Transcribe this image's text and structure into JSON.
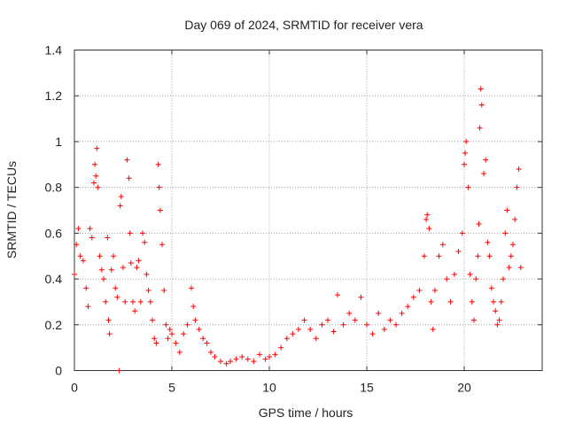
{
  "chart_data": {
    "type": "scatter",
    "title": "Day 069 of 2024, SRMTID for receiver vera",
    "xlabel": "GPS time / hours",
    "ylabel": "SRMTID / TECUs",
    "xlim": [
      0,
      24
    ],
    "ylim": [
      0,
      1.4
    ],
    "xticks": [
      0,
      5,
      10,
      15,
      20
    ],
    "xtick_labels": [
      "0",
      "5",
      "10",
      "15",
      "20"
    ],
    "yticks": [
      0,
      0.2,
      0.4,
      0.6,
      0.8,
      1.0,
      1.2,
      1.4
    ],
    "ytick_labels": [
      "0",
      "0.2",
      "0.4",
      "0.6",
      "0.8",
      "1",
      "1.2",
      "1.4"
    ],
    "grid": true,
    "marker": "+",
    "marker_color": "#ff0000",
    "series": [
      {
        "name": "SRMTID",
        "points": [
          [
            0.0,
            0.42
          ],
          [
            0.1,
            0.55
          ],
          [
            0.2,
            0.62
          ],
          [
            0.3,
            0.5
          ],
          [
            0.45,
            0.48
          ],
          [
            0.6,
            0.36
          ],
          [
            0.7,
            0.28
          ],
          [
            0.8,
            0.62
          ],
          [
            0.9,
            0.58
          ],
          [
            1.0,
            0.82
          ],
          [
            1.05,
            0.9
          ],
          [
            1.1,
            0.85
          ],
          [
            1.15,
            0.97
          ],
          [
            1.2,
            0.8
          ],
          [
            1.3,
            0.5
          ],
          [
            1.4,
            0.44
          ],
          [
            1.5,
            0.4
          ],
          [
            1.6,
            0.3
          ],
          [
            1.7,
            0.58
          ],
          [
            1.75,
            0.22
          ],
          [
            1.8,
            0.16
          ],
          [
            1.9,
            0.44
          ],
          [
            2.0,
            0.5
          ],
          [
            2.1,
            0.36
          ],
          [
            2.2,
            0.32
          ],
          [
            2.3,
            0.0
          ],
          [
            2.35,
            0.72
          ],
          [
            2.4,
            0.76
          ],
          [
            2.5,
            0.45
          ],
          [
            2.6,
            0.3
          ],
          [
            2.7,
            0.92
          ],
          [
            2.8,
            0.84
          ],
          [
            2.85,
            0.6
          ],
          [
            2.9,
            0.47
          ],
          [
            3.0,
            0.3
          ],
          [
            3.1,
            0.26
          ],
          [
            3.2,
            0.45
          ],
          [
            3.3,
            0.48
          ],
          [
            3.4,
            0.3
          ],
          [
            3.5,
            0.6
          ],
          [
            3.6,
            0.56
          ],
          [
            3.7,
            0.42
          ],
          [
            3.8,
            0.35
          ],
          [
            3.9,
            0.3
          ],
          [
            4.0,
            0.22
          ],
          [
            4.1,
            0.14
          ],
          [
            4.2,
            0.12
          ],
          [
            4.3,
            0.9
          ],
          [
            4.35,
            0.8
          ],
          [
            4.4,
            0.7
          ],
          [
            4.5,
            0.55
          ],
          [
            4.6,
            0.35
          ],
          [
            4.7,
            0.2
          ],
          [
            4.8,
            0.14
          ],
          [
            4.9,
            0.18
          ],
          [
            5.0,
            0.16
          ],
          [
            5.2,
            0.12
          ],
          [
            5.4,
            0.08
          ],
          [
            5.6,
            0.16
          ],
          [
            5.8,
            0.2
          ],
          [
            6.0,
            0.36
          ],
          [
            6.1,
            0.28
          ],
          [
            6.2,
            0.22
          ],
          [
            6.4,
            0.18
          ],
          [
            6.6,
            0.14
          ],
          [
            6.8,
            0.12
          ],
          [
            7.0,
            0.08
          ],
          [
            7.2,
            0.06
          ],
          [
            7.5,
            0.04
          ],
          [
            7.8,
            0.03
          ],
          [
            8.0,
            0.04
          ],
          [
            8.3,
            0.05
          ],
          [
            8.6,
            0.06
          ],
          [
            8.9,
            0.05
          ],
          [
            9.2,
            0.04
          ],
          [
            9.5,
            0.07
          ],
          [
            9.8,
            0.05
          ],
          [
            10.0,
            0.06
          ],
          [
            10.3,
            0.07
          ],
          [
            10.6,
            0.1
          ],
          [
            10.9,
            0.14
          ],
          [
            11.2,
            0.16
          ],
          [
            11.5,
            0.18
          ],
          [
            11.8,
            0.22
          ],
          [
            12.1,
            0.18
          ],
          [
            12.4,
            0.14
          ],
          [
            12.7,
            0.2
          ],
          [
            13.0,
            0.22
          ],
          [
            13.3,
            0.17
          ],
          [
            13.5,
            0.33
          ],
          [
            13.8,
            0.2
          ],
          [
            14.1,
            0.25
          ],
          [
            14.4,
            0.22
          ],
          [
            14.7,
            0.32
          ],
          [
            15.0,
            0.2
          ],
          [
            15.3,
            0.16
          ],
          [
            15.6,
            0.25
          ],
          [
            15.9,
            0.18
          ],
          [
            16.2,
            0.22
          ],
          [
            16.5,
            0.2
          ],
          [
            16.8,
            0.25
          ],
          [
            17.1,
            0.28
          ],
          [
            17.4,
            0.32
          ],
          [
            17.7,
            0.35
          ],
          [
            17.95,
            0.5
          ],
          [
            18.05,
            0.66
          ],
          [
            18.1,
            0.68
          ],
          [
            18.2,
            0.62
          ],
          [
            18.3,
            0.3
          ],
          [
            18.4,
            0.18
          ],
          [
            18.5,
            0.35
          ],
          [
            18.7,
            0.5
          ],
          [
            18.9,
            0.55
          ],
          [
            19.1,
            0.4
          ],
          [
            19.3,
            0.3
          ],
          [
            19.5,
            0.42
          ],
          [
            19.7,
            0.52
          ],
          [
            19.9,
            0.6
          ],
          [
            20.0,
            0.9
          ],
          [
            20.05,
            0.95
          ],
          [
            20.1,
            1.0
          ],
          [
            20.2,
            0.8
          ],
          [
            20.3,
            0.42
          ],
          [
            20.4,
            0.3
          ],
          [
            20.5,
            0.22
          ],
          [
            20.6,
            0.4
          ],
          [
            20.7,
            0.5
          ],
          [
            20.75,
            0.64
          ],
          [
            20.8,
            1.06
          ],
          [
            20.85,
            1.23
          ],
          [
            20.9,
            1.16
          ],
          [
            21.0,
            0.86
          ],
          [
            21.1,
            0.92
          ],
          [
            21.2,
            0.56
          ],
          [
            21.3,
            0.5
          ],
          [
            21.4,
            0.36
          ],
          [
            21.5,
            0.3
          ],
          [
            21.6,
            0.26
          ],
          [
            21.7,
            0.2
          ],
          [
            21.8,
            0.22
          ],
          [
            21.9,
            0.3
          ],
          [
            22.0,
            0.4
          ],
          [
            22.1,
            0.6
          ],
          [
            22.2,
            0.7
          ],
          [
            22.3,
            0.45
          ],
          [
            22.4,
            0.5
          ],
          [
            22.5,
            0.55
          ],
          [
            22.6,
            0.66
          ],
          [
            22.7,
            0.8
          ],
          [
            22.8,
            0.88
          ],
          [
            22.9,
            0.45
          ]
        ]
      }
    ]
  }
}
